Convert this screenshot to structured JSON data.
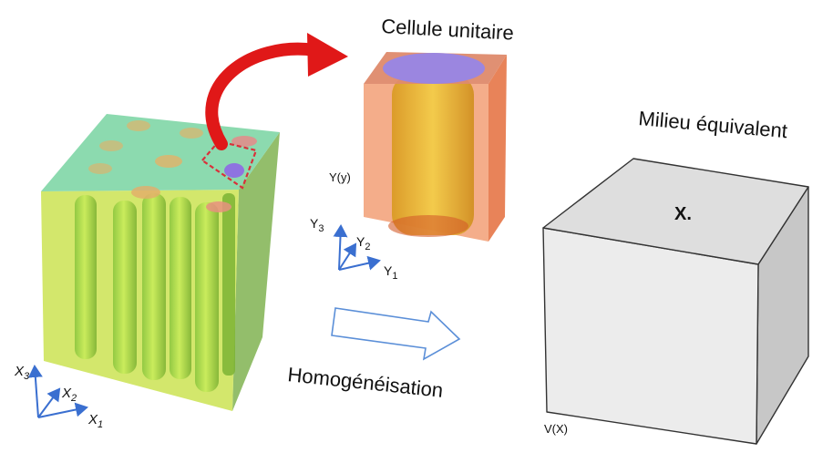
{
  "composite": {
    "axes": {
      "x1": {
        "base": "X",
        "sub": "1"
      },
      "x2": {
        "base": "X",
        "sub": "2"
      },
      "x3": {
        "base": "X",
        "sub": "3"
      }
    }
  },
  "unit_cell": {
    "title": "Cellule unitaire",
    "volume_label": "Y(y)",
    "axes": {
      "y1": {
        "base": "Y",
        "sub": "1"
      },
      "y2": {
        "base": "Y",
        "sub": "2"
      },
      "y3": {
        "base": "Y",
        "sub": "3"
      }
    }
  },
  "process": {
    "label": "Homogénéisation"
  },
  "equivalent": {
    "title": "Milieu équivalent",
    "point_label": "X.",
    "volume_label": "V(X)"
  },
  "colors": {
    "composite_top": "#7fd6a6",
    "composite_front": "#c7e24a",
    "composite_side": "#8fbf3a",
    "fiber": "#9ad23a",
    "fiber_end": "#e59a88",
    "selection_box": "#d9303a",
    "arrow_red": "#e01818",
    "cell_body": "#f3a07a",
    "cell_fiber": "#e8b12a",
    "cell_fiber_top": "#9b86e0",
    "axis_blue": "#3a6fd0",
    "equivalent_front": "#ececec",
    "equivalent_top": "#dedede",
    "equivalent_side": "#c7c7c7",
    "process_arrow": "#5b8fd8"
  }
}
